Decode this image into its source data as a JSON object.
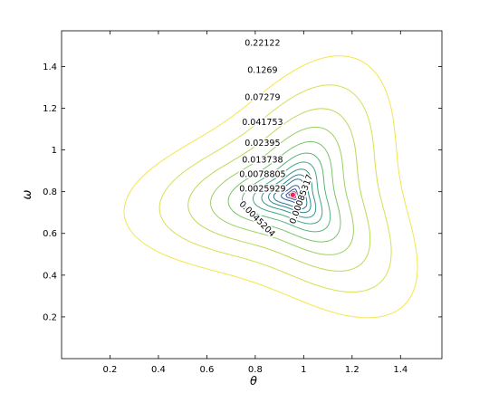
{
  "chart_data": {
    "type": "contour",
    "xlabel": "θ",
    "ylabel": "ω",
    "xlim": [
      0,
      1.571
    ],
    "ylim": [
      0,
      1.571
    ],
    "xticks": [
      "0.2",
      "0.4",
      "0.6",
      "0.8",
      "1",
      "1.2",
      "1.4"
    ],
    "yticks": [
      "0.2",
      "0.4",
      "0.6",
      "0.8",
      "1",
      "1.2",
      "1.4"
    ],
    "minimum_point": {
      "x": 0.955,
      "y": 0.785
    },
    "contour_labels": [
      "0.22122",
      "0.1269",
      "0.07279",
      "0.041753",
      "0.02395",
      "0.013738",
      "0.0078805",
      "0.0025929",
      "0.00085317",
      "0.0045204"
    ],
    "grid": false,
    "colormap": [
      "#3b2f7e",
      "#2c5aa0",
      "#2a8a8c",
      "#4fb37a",
      "#a9d65b",
      "#f3e64a"
    ]
  }
}
